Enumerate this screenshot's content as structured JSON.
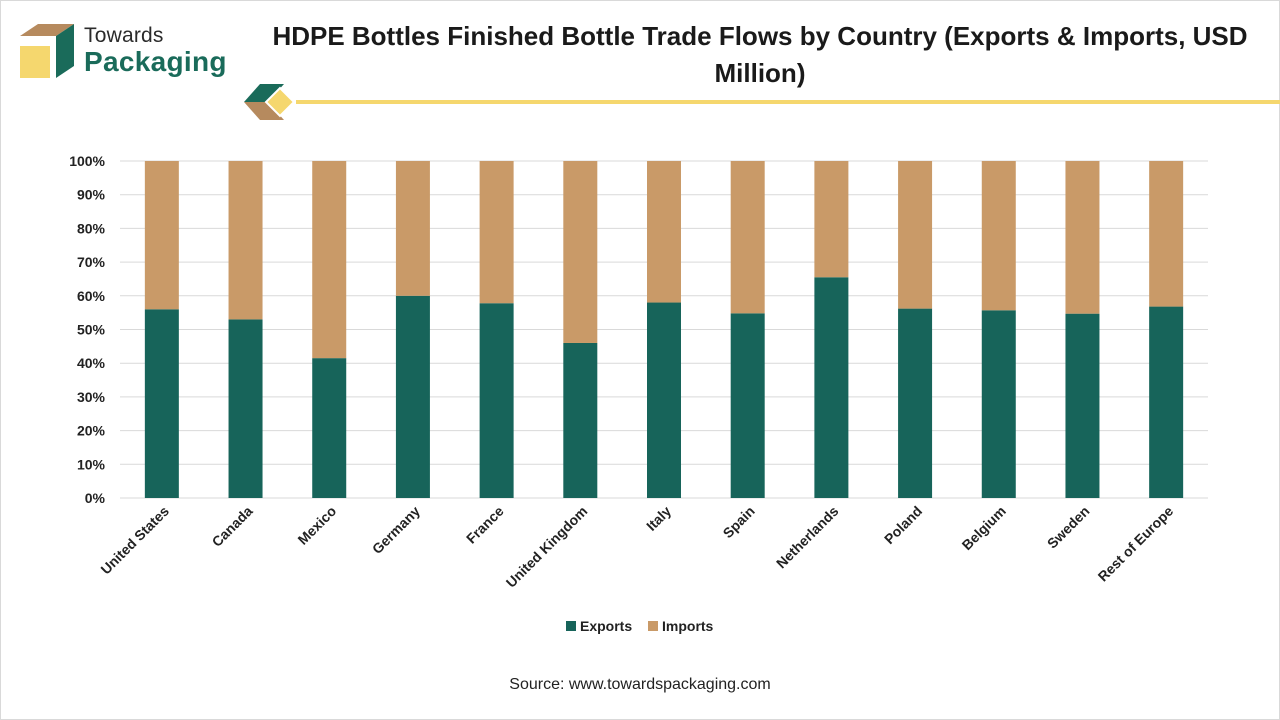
{
  "header": {
    "logo_line1": "Towards",
    "logo_line2": "Packaging",
    "logo_icon": "box-icon",
    "title": "HDPE Bottles Finished Bottle Trade Flows by Country (Exports & Imports, USD Million)"
  },
  "colors": {
    "exports": "#17645a",
    "imports": "#c99a68",
    "accent": "#f5d76e",
    "grid": "#d9d9d9"
  },
  "chart_data": {
    "type": "bar",
    "stacked": true,
    "title": "HDPE Bottles Finished Bottle Trade Flows by Country (Exports & Imports, USD Million)",
    "xlabel": "",
    "ylabel": "",
    "ylim": [
      0,
      100
    ],
    "yticks": [
      "0%",
      "10%",
      "20%",
      "30%",
      "40%",
      "50%",
      "60%",
      "70%",
      "80%",
      "90%",
      "100%"
    ],
    "categories": [
      "United States",
      "Canada",
      "Mexico",
      "Germany",
      "France",
      "United Kingdom",
      "Italy",
      "Spain",
      "Netherlands",
      "Poland",
      "Belgium",
      "Sweden",
      "Rest of Europe"
    ],
    "series": [
      {
        "name": "Exports",
        "values": [
          56,
          53,
          41.5,
          60,
          57.8,
          46,
          58,
          54.8,
          65.5,
          56.2,
          55.7,
          54.7,
          56.8
        ]
      },
      {
        "name": "Imports",
        "values": [
          44,
          47,
          58.5,
          40,
          42.2,
          54,
          42,
          45.2,
          34.5,
          43.8,
          44.3,
          45.3,
          43.2
        ]
      }
    ],
    "legend": [
      "Exports",
      "Imports"
    ],
    "legend_position": "bottom",
    "grid": true
  },
  "footer": {
    "source": "Source: www.towardspackaging.com"
  }
}
